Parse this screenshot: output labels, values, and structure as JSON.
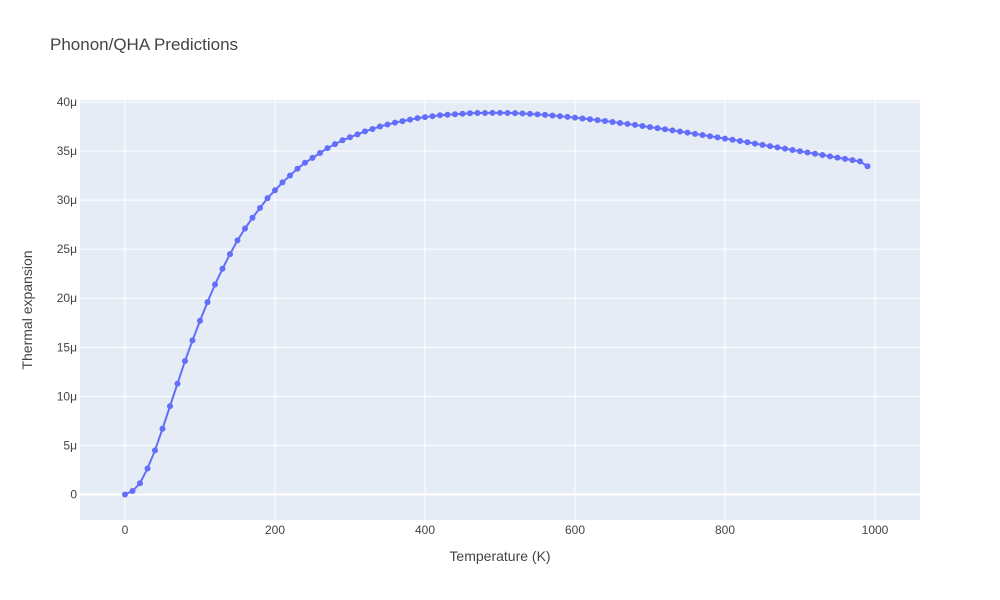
{
  "chart_data": {
    "type": "scatter",
    "mode": "lines+markers",
    "title": "Phonon/QHA Predictions",
    "xlabel": "Temperature (K)",
    "ylabel": "Thermal expansion",
    "xlim": [
      -60,
      1060
    ],
    "ylim": [
      -2.6e-06,
      4.02e-05
    ],
    "x_ticks": [
      0,
      200,
      400,
      600,
      800,
      1000
    ],
    "x_tick_labels": [
      "0",
      "200",
      "400",
      "600",
      "800",
      "1000"
    ],
    "y_ticks": [
      0,
      5e-06,
      1e-05,
      1.5e-05,
      2e-05,
      2.5e-05,
      3e-05,
      3.5e-05,
      4e-05
    ],
    "y_tick_labels": [
      "0",
      "5μ",
      "10μ",
      "15μ",
      "20μ",
      "25μ",
      "30μ",
      "35μ",
      "40μ"
    ],
    "grid": true,
    "series": [
      {
        "color": "#636efa",
        "x": [
          0,
          10,
          20,
          30,
          40,
          50,
          60,
          70,
          80,
          90,
          100,
          110,
          120,
          130,
          140,
          150,
          160,
          170,
          180,
          190,
          200,
          210,
          220,
          230,
          240,
          250,
          260,
          270,
          280,
          290,
          300,
          310,
          320,
          330,
          340,
          350,
          360,
          370,
          380,
          390,
          400,
          410,
          420,
          430,
          440,
          450,
          460,
          470,
          480,
          490,
          500,
          510,
          520,
          530,
          540,
          550,
          560,
          570,
          580,
          590,
          600,
          610,
          620,
          630,
          640,
          650,
          660,
          670,
          680,
          690,
          700,
          710,
          720,
          730,
          740,
          750,
          760,
          770,
          780,
          790,
          800,
          810,
          820,
          830,
          840,
          850,
          860,
          870,
          880,
          890,
          900,
          910,
          920,
          930,
          940,
          950,
          960,
          970,
          980,
          990
        ],
        "y": [
          0,
          3.5e-07,
          1.15e-06,
          2.65e-06,
          4.5e-06,
          6.7e-06,
          9e-06,
          1.13e-05,
          1.36e-05,
          1.57e-05,
          1.77e-05,
          1.96e-05,
          2.14e-05,
          2.3e-05,
          2.45e-05,
          2.59e-05,
          2.71e-05,
          2.82e-05,
          2.92e-05,
          3.02e-05,
          3.1e-05,
          3.18e-05,
          3.25e-05,
          3.32e-05,
          3.38e-05,
          3.43e-05,
          3.48e-05,
          3.53e-05,
          3.57e-05,
          3.61e-05,
          3.64e-05,
          3.67e-05,
          3.7e-05,
          3.725e-05,
          3.75e-05,
          3.77e-05,
          3.79e-05,
          3.805e-05,
          3.82e-05,
          3.835e-05,
          3.845e-05,
          3.855e-05,
          3.865e-05,
          3.87e-05,
          3.875e-05,
          3.88e-05,
          3.885e-05,
          3.887e-05,
          3.888e-05,
          3.889e-05,
          3.889e-05,
          3.888e-05,
          3.886e-05,
          3.883e-05,
          3.879e-05,
          3.874e-05,
          3.868e-05,
          3.862e-05,
          3.855e-05,
          3.848e-05,
          3.84e-05,
          3.832e-05,
          3.824e-05,
          3.815e-05,
          3.806e-05,
          3.796e-05,
          3.786e-05,
          3.776e-05,
          3.766e-05,
          3.755e-05,
          3.744e-05,
          3.733e-05,
          3.722e-05,
          3.711e-05,
          3.699e-05,
          3.687e-05,
          3.675e-05,
          3.663e-05,
          3.651e-05,
          3.639e-05,
          3.627e-05,
          3.615e-05,
          3.602e-05,
          3.589e-05,
          3.576e-05,
          3.563e-05,
          3.55e-05,
          3.537e-05,
          3.524e-05,
          3.511e-05,
          3.498e-05,
          3.485e-05,
          3.472e-05,
          3.459e-05,
          3.446e-05,
          3.433e-05,
          3.42e-05,
          3.407e-05,
          3.394e-05,
          3.345e-05
        ]
      }
    ]
  },
  "colors": {
    "plot_background": "#e5ecf6",
    "grid": "#ffffff",
    "text": "#444444",
    "series": "#636efa"
  }
}
